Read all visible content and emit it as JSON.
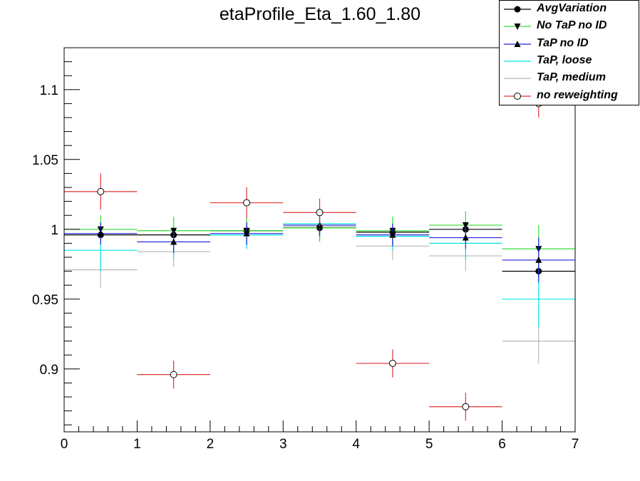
{
  "chart_data": {
    "type": "scatter",
    "title": "etaProfile_Eta_1.60_1.80",
    "xlim": [
      0,
      7
    ],
    "ylim": [
      0.855,
      1.13
    ],
    "x_ticks": [
      "0",
      "1",
      "2",
      "3",
      "4",
      "5",
      "6",
      "7"
    ],
    "y_ticks": [
      "0.9",
      "0.95",
      "1",
      "1.05",
      "1.1"
    ],
    "legend_position": "top-right",
    "series": [
      {
        "name": "AvgVariation",
        "color": "#000000",
        "marker": "filled-circle",
        "x": [
          0.5,
          1.5,
          2.5,
          3.5,
          4.5,
          5.5,
          6.5
        ],
        "y": [
          0.996,
          0.996,
          0.999,
          1.001,
          0.998,
          1.0,
          0.97
        ],
        "yerr": [
          0.004,
          0.004,
          0.004,
          0.004,
          0.004,
          0.004,
          0.004
        ]
      },
      {
        "name": "No TaP no ID",
        "color": "#33dd33",
        "marker": "down-triangle",
        "x": [
          0.5,
          1.5,
          2.5,
          3.5,
          4.5,
          5.5,
          6.5
        ],
        "y": [
          1.0,
          0.999,
          0.999,
          1.001,
          0.999,
          1.003,
          0.986
        ],
        "yerr": [
          0.01,
          0.01,
          0.01,
          0.01,
          0.01,
          0.01,
          0.017
        ]
      },
      {
        "name": "TaP no ID",
        "color": "#2222dd",
        "marker": "up-triangle",
        "x": [
          0.5,
          1.5,
          2.5,
          3.5,
          4.5,
          5.5,
          6.5
        ],
        "y": [
          0.997,
          0.991,
          0.997,
          1.003,
          0.996,
          0.994,
          0.978
        ],
        "yerr": [
          0.008,
          0.008,
          0.008,
          0.008,
          0.008,
          0.008,
          0.016
        ]
      },
      {
        "name": "TaP, loose",
        "color": "#00e5e5",
        "marker": "none",
        "x": [
          0.5,
          1.5,
          2.5,
          3.5,
          4.5,
          5.5,
          6.5
        ],
        "y": [
          0.985,
          0.991,
          0.996,
          1.004,
          0.995,
          0.99,
          0.95
        ],
        "yerr": [
          0.015,
          0.012,
          0.01,
          0.01,
          0.01,
          0.012,
          0.02
        ]
      },
      {
        "name": "TaP, medium",
        "color": "#b8b8b8",
        "marker": "none",
        "x": [
          0.5,
          1.5,
          2.5,
          3.5,
          4.5,
          5.5,
          6.5
        ],
        "y": [
          0.971,
          0.984,
          0.996,
          1.002,
          0.988,
          0.981,
          0.92
        ],
        "yerr": [
          0.013,
          0.011,
          0.01,
          0.01,
          0.01,
          0.011,
          0.016
        ]
      },
      {
        "name": "no reweighting",
        "color": "#e03333",
        "marker": "open-circle",
        "x": [
          0.5,
          1.5,
          2.5,
          3.5,
          4.5,
          5.5,
          6.5
        ],
        "y": [
          1.027,
          0.896,
          1.019,
          1.012,
          0.904,
          0.873,
          1.09
        ],
        "yerr": [
          0.013,
          0.01,
          0.011,
          0.01,
          0.01,
          0.01,
          0.01
        ]
      }
    ]
  }
}
